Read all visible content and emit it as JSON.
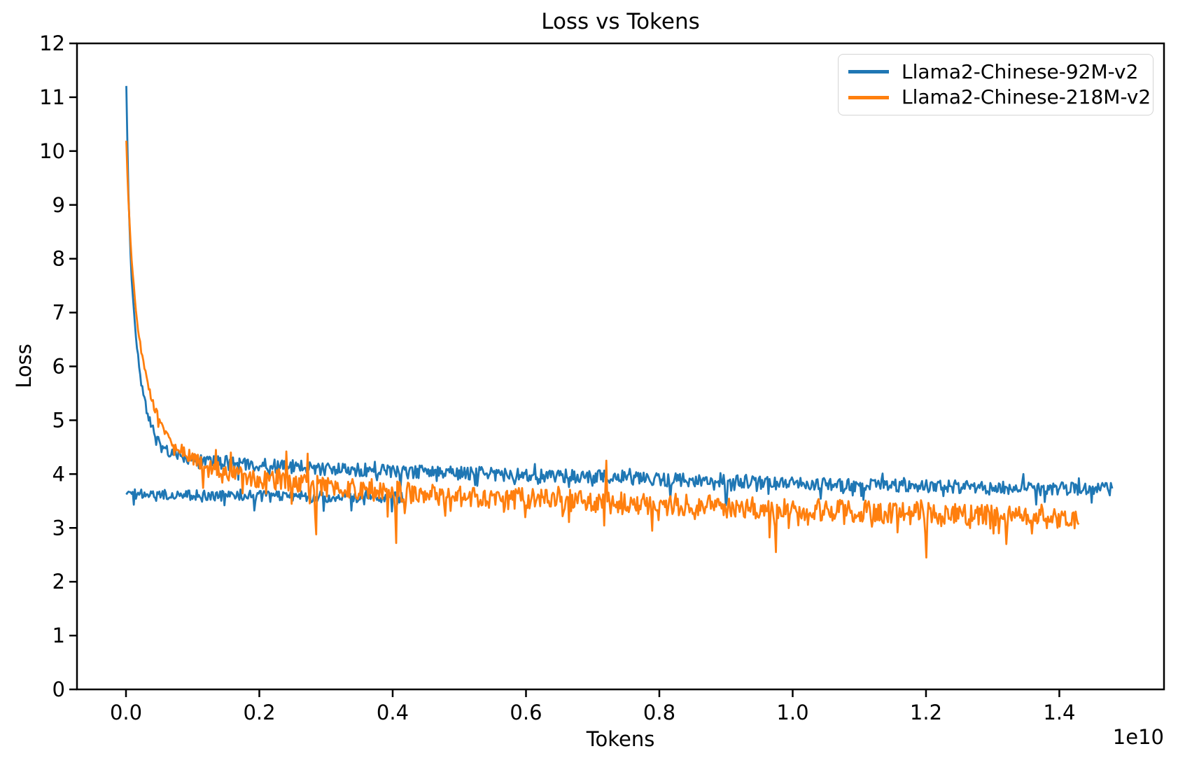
{
  "chart_data": {
    "type": "line",
    "title": "Loss vs Tokens",
    "xlabel": "Tokens",
    "ylabel": "Loss",
    "x_offset_label": "1e10",
    "x_units": "tokens (values in 1e10)",
    "xlim": [
      -0.0735,
      1.557
    ],
    "ylim": [
      0,
      12
    ],
    "grid": false,
    "legend_position": "upper right",
    "x_ticks": [
      {
        "value": 0.0,
        "label": "0.0"
      },
      {
        "value": 0.2,
        "label": "0.2"
      },
      {
        "value": 0.4,
        "label": "0.4"
      },
      {
        "value": 0.6,
        "label": "0.6"
      },
      {
        "value": 0.8,
        "label": "0.8"
      },
      {
        "value": 1.0,
        "label": "1.0"
      },
      {
        "value": 1.2,
        "label": "1.2"
      },
      {
        "value": 1.4,
        "label": "1.4"
      }
    ],
    "y_ticks": [
      {
        "value": 0,
        "label": "0"
      },
      {
        "value": 1,
        "label": "1"
      },
      {
        "value": 2,
        "label": "2"
      },
      {
        "value": 3,
        "label": "3"
      },
      {
        "value": 4,
        "label": "4"
      },
      {
        "value": 5,
        "label": "5"
      },
      {
        "value": 6,
        "label": "6"
      },
      {
        "value": 7,
        "label": "7"
      },
      {
        "value": 8,
        "label": "8"
      },
      {
        "value": 9,
        "label": "9"
      },
      {
        "value": 10,
        "label": "10"
      },
      {
        "value": 11,
        "label": "11"
      },
      {
        "value": 12,
        "label": "12"
      }
    ],
    "series": [
      {
        "name": "Llama2-Chinese-92M-v2",
        "color": "#1f77b4",
        "line_width": 2.8,
        "peak_loss": 11.2,
        "final_loss": 3.72,
        "x_end": 1.482,
        "segments": [
          {
            "x_start": 0.0005,
            "x_end": 1.482,
            "step": 0.0016,
            "seed": 12345,
            "trend_anchors": [
              [
                0.0005,
                11.2
              ],
              [
                0.002,
                10.2
              ],
              [
                0.0035,
                9.3
              ],
              [
                0.005,
                8.7
              ],
              [
                0.007,
                8.0
              ],
              [
                0.009,
                7.5
              ],
              [
                0.012,
                7.0
              ],
              [
                0.016,
                6.4
              ],
              [
                0.02,
                6.0
              ],
              [
                0.026,
                5.5
              ],
              [
                0.034,
                5.05
              ],
              [
                0.045,
                4.7
              ],
              [
                0.06,
                4.45
              ],
              [
                0.08,
                4.32
              ],
              [
                0.11,
                4.25
              ],
              [
                0.16,
                4.2
              ],
              [
                0.22,
                4.15
              ],
              [
                0.3,
                4.1
              ],
              [
                0.4,
                4.05
              ],
              [
                0.55,
                4.0
              ],
              [
                0.7,
                3.95
              ],
              [
                0.85,
                3.88
              ],
              [
                1.0,
                3.82
              ],
              [
                1.15,
                3.78
              ],
              [
                1.3,
                3.75
              ],
              [
                1.482,
                3.72
              ]
            ],
            "noise_anchors": [
              [
                0.0005,
                0.01
              ],
              [
                0.01,
                0.03
              ],
              [
                0.03,
                0.06
              ],
              [
                0.07,
                0.1
              ],
              [
                0.15,
                0.13
              ],
              [
                1.5,
                0.12
              ]
            ],
            "dip_prob": 0.05,
            "dip_mag": 0.28,
            "up_prob": 0.04,
            "up_mag": 0.16,
            "extra_dips": [
              [
                0.9,
                3.42
              ]
            ],
            "extra_ups": []
          },
          {
            "x_start": 0.0005,
            "x_end": 0.42,
            "step": 0.0016,
            "seed": 777,
            "trend_anchors": [
              [
                0.0005,
                3.63
              ],
              [
                0.15,
                3.6
              ],
              [
                0.42,
                3.55
              ]
            ],
            "noise_anchors": [
              [
                0.0005,
                0.09
              ],
              [
                0.42,
                0.12
              ]
            ],
            "dip_prob": 0.05,
            "dip_mag": 0.22,
            "up_prob": 0.03,
            "up_mag": 0.12,
            "extra_dips": [],
            "extra_ups": []
          }
        ]
      },
      {
        "name": "Llama2-Chinese-218M-v2",
        "color": "#ff7f0e",
        "line_width": 2.8,
        "peak_loss": 10.2,
        "final_loss": 3.17,
        "x_end": 1.43,
        "segments": [
          {
            "x_start": 0.0005,
            "x_end": 1.43,
            "step": 0.0016,
            "seed": 424242,
            "trend_anchors": [
              [
                0.0005,
                10.2
              ],
              [
                0.002,
                9.6
              ],
              [
                0.004,
                9.0
              ],
              [
                0.006,
                8.5
              ],
              [
                0.009,
                7.9
              ],
              [
                0.013,
                7.3
              ],
              [
                0.018,
                6.7
              ],
              [
                0.024,
                6.2
              ],
              [
                0.032,
                5.7
              ],
              [
                0.042,
                5.25
              ],
              [
                0.055,
                4.85
              ],
              [
                0.07,
                4.6
              ],
              [
                0.09,
                4.38
              ],
              [
                0.115,
                4.18
              ],
              [
                0.15,
                4.02
              ],
              [
                0.2,
                3.9
              ],
              [
                0.27,
                3.8
              ],
              [
                0.36,
                3.7
              ],
              [
                0.48,
                3.6
              ],
              [
                0.62,
                3.52
              ],
              [
                0.78,
                3.44
              ],
              [
                0.95,
                3.37
              ],
              [
                1.1,
                3.31
              ],
              [
                1.25,
                3.26
              ],
              [
                1.43,
                3.17
              ]
            ],
            "noise_anchors": [
              [
                0.0005,
                0.01
              ],
              [
                0.015,
                0.04
              ],
              [
                0.05,
                0.08
              ],
              [
                0.1,
                0.13
              ],
              [
                0.2,
                0.18
              ],
              [
                0.45,
                0.21
              ],
              [
                1.43,
                0.2
              ]
            ],
            "dip_prob": 0.07,
            "dip_mag": 0.45,
            "up_prob": 0.03,
            "up_mag": 0.2,
            "extra_dips": [
              [
                0.285,
                2.88
              ],
              [
                0.405,
                2.72
              ],
              [
                0.975,
                2.55
              ],
              [
                1.2,
                2.45
              ],
              [
                1.32,
                2.7
              ]
            ],
            "extra_ups": [
              [
                0.135,
                4.45
              ],
              [
                0.158,
                4.4
              ],
              [
                0.24,
                4.42
              ],
              [
                0.272,
                4.38
              ],
              [
                0.72,
                4.25
              ]
            ]
          }
        ]
      }
    ]
  }
}
